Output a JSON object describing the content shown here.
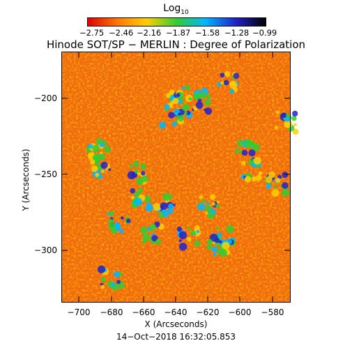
{
  "colorbar": {
    "title": "Log",
    "title_sub": "10",
    "ticks": [
      "−2.75",
      "−2.46",
      "−2.16",
      "−1.87",
      "−1.58",
      "−1.28",
      "−0.99"
    ]
  },
  "plot": {
    "title": "Hinode SOT/SP − MERLIN : Degree of Polarization",
    "xlabel": "X (Arcseconds)",
    "ylabel": "Y (Arcseconds)",
    "xticks": [
      "−700",
      "−680",
      "−660",
      "−640",
      "−620",
      "−600",
      "−580"
    ],
    "yticks": [
      "−200",
      "−250",
      "−300"
    ],
    "timestamp": "14−Oct−2018 16:32:05.853"
  },
  "chart_data": {
    "type": "heatmap",
    "title": "Hinode SOT/SP − MERLIN : Degree of Polarization",
    "xlabel": "X (Arcseconds)",
    "ylabel": "Y (Arcseconds)",
    "xlim": [
      -713,
      -573
    ],
    "ylim": [
      -335,
      -173
    ],
    "colorbar_label": "Log10",
    "colorbar_range": [
      -2.75,
      -0.99
    ],
    "colormap": [
      "#e00000",
      "#ff7a00",
      "#ffd000",
      "#33cc33",
      "#00b8ff",
      "#2222cc",
      "#000000"
    ],
    "background": "#f06a10"
  }
}
